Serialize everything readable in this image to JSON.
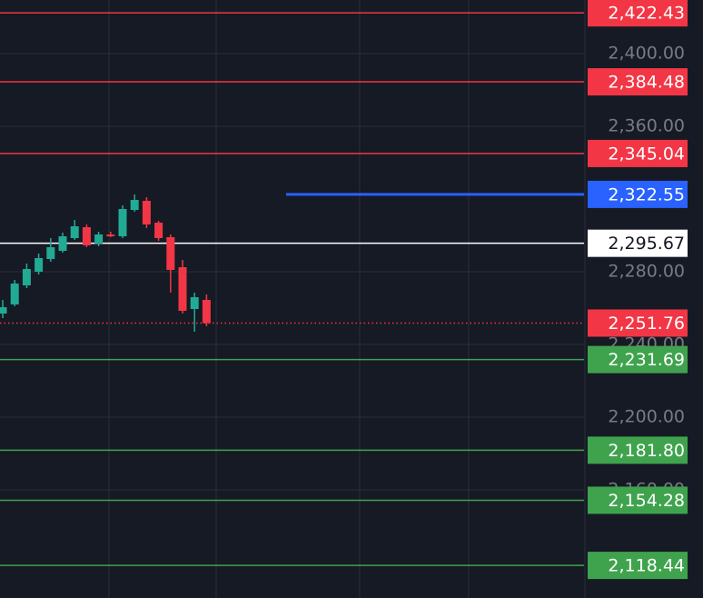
{
  "chart_data": {
    "type": "candlestick",
    "ylim": [
      2100.5,
      2429.5
    ],
    "yticks": [
      {
        "value": 2400,
        "label": "2,400.00"
      },
      {
        "value": 2360,
        "label": "2,360.00"
      },
      {
        "value": 2280,
        "label": "2,280.00"
      },
      {
        "value": 2240,
        "label": "2,240.00"
      },
      {
        "value": 2200,
        "label": "2,200.00"
      },
      {
        "value": 2160,
        "label": "2,160.00"
      }
    ],
    "grid": true,
    "up_color": "#22ab94",
    "down_color": "#f23645",
    "open": [
      2257,
      2262,
      2272.5,
      2280,
      2287,
      2291.5,
      2298.5,
      2304.5,
      2295.5,
      2300.5,
      2299.5,
      2314,
      2319,
      2307,
      2299,
      2282.5,
      2259.5,
      2264.5
    ],
    "high": [
      2264.5,
      2275.5,
      2284.5,
      2290,
      2298.5,
      2301.5,
      2308.5,
      2306,
      2302,
      2302,
      2316.5,
      2322.5,
      2321,
      2308,
      2300.5,
      2286.5,
      2268.5,
      2267.5
    ],
    "low": [
      2254.5,
      2261,
      2271,
      2278.5,
      2285.5,
      2290.5,
      2297.5,
      2293.5,
      2294,
      2299,
      2298.5,
      2313,
      2304,
      2297,
      2268.5,
      2257,
      2247,
      2250
    ],
    "close": [
      2260.5,
      2273.5,
      2281.5,
      2287.5,
      2293.5,
      2299.5,
      2305,
      2294.5,
      2300.5,
      2299.5,
      2314.5,
      2319.5,
      2306,
      2298.5,
      2281,
      2258.5,
      2266,
      2251.76
    ],
    "levels": [
      {
        "value": 2422.43,
        "label": "2,422.43",
        "color": "#f23645",
        "style": "solid"
      },
      {
        "value": 2384.48,
        "label": "2,384.48",
        "color": "#f23645",
        "style": "solid"
      },
      {
        "value": 2345.04,
        "label": "2,345.04",
        "color": "#f23645",
        "style": "solid"
      },
      {
        "value": 2322.55,
        "label": "2,322.55",
        "color": "#2962ff",
        "style": "ray"
      },
      {
        "value": 2295.67,
        "label": "2,295.67",
        "color": "#ffffff",
        "style": "solid"
      },
      {
        "value": 2251.76,
        "label": "2,251.76",
        "color": "#f23645",
        "style": "dotted"
      },
      {
        "value": 2231.69,
        "label": "2,231.69",
        "color": "#3fa34d",
        "style": "solid"
      },
      {
        "value": 2181.8,
        "label": "2,181.80",
        "color": "#3fa34d",
        "style": "solid"
      },
      {
        "value": 2154.28,
        "label": "2,154.28",
        "color": "#3fa34d",
        "style": "solid"
      },
      {
        "value": 2118.44,
        "label": "2,118.44",
        "color": "#3fa34d",
        "style": "solid"
      }
    ]
  }
}
